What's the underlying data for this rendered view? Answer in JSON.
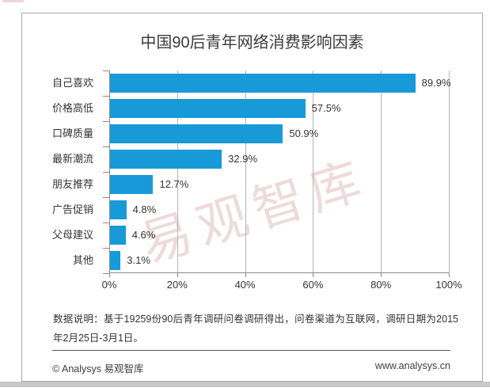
{
  "watermark": {
    "text": "易观智库"
  },
  "chart_data": {
    "type": "bar",
    "orientation": "horizontal",
    "title": "中国90后青年网络消费影响因素",
    "categories": [
      "自己喜欢",
      "价格高低",
      "口碑质量",
      "最新潮流",
      "朋友推荐",
      "广告促销",
      "父母建议",
      "其他"
    ],
    "values": [
      89.9,
      57.5,
      50.9,
      32.9,
      12.7,
      4.8,
      4.6,
      3.1
    ],
    "value_labels": [
      "89.9%",
      "57.5%",
      "50.9%",
      "32.9%",
      "12.7%",
      "4.8%",
      "4.6%",
      "3.1%"
    ],
    "x_ticks": [
      "0%",
      "20%",
      "40%",
      "60%",
      "80%",
      "100%"
    ],
    "xlim": [
      0,
      100
    ],
    "xlabel": "",
    "ylabel": "",
    "grid": true,
    "legend": false,
    "bar_color": "#189ad8"
  },
  "note": "数据说明：基于19259份90后青年调研问卷调研得出，问卷渠道为互联网，调研日期为2015年2月25日-3月1日。",
  "footer": {
    "copyright": "© Analysys 易观智库",
    "website": "www.analysys.cn"
  }
}
